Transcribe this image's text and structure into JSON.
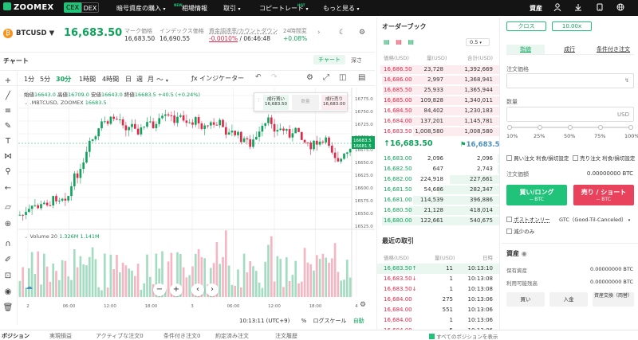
{
  "nav": {
    "logo": "ZOOMEX",
    "cex": "CEX",
    "dex": "DEX",
    "items": [
      "暗号資産の購入",
      "相場情報",
      "取引",
      "コピートレード",
      "もっと見る"
    ],
    "new1": "NEW",
    "new2": "HOT",
    "asset": "資産"
  },
  "ticker": {
    "symbol": "BTCUSD",
    "price": "16,683.50",
    "mark_label": "マーク価格",
    "mark": "16,683.50",
    "index_label": "インデックス価格",
    "index": "16,690.55",
    "funding_label": "資金調達率/カウントダウン",
    "funding": "-0.0010%",
    "countdown": "06:46:48",
    "change_label": "24時間変",
    "change": "+0.08%"
  },
  "chart": {
    "title": "チャート",
    "tab_chart": "チャート",
    "tab_depth": "深さ",
    "intervals": [
      "1分",
      "5分",
      "30分",
      "1時間",
      "4時間",
      "日",
      "週",
      "月"
    ],
    "active_interval": "30分",
    "indicator": "インジケーター",
    "ohlc": {
      "o_label": "始値",
      "o": "16643.0",
      "h_label": "高値",
      "h": "16709.0",
      "l_label": "安値",
      "l": "16643.0",
      "c_label": "終値",
      "c": "16683.5",
      "chg": "+40.5 (+0.24%)"
    },
    "series_label": ".MBTCUSD, ZOOMEX",
    "series_val": "16683.5",
    "sell_label": "成行買い",
    "sell_val": "16,683.50",
    "mid_label": "数量",
    "buy_label": "成行売り",
    "buy_val": "16,683.00",
    "yticks": [
      "16775.0",
      "16750.0",
      "16725.0",
      "16700.0",
      "16675.0",
      "16650.0",
      "16625.0",
      "16600.0",
      "16575.0",
      "16550.0",
      "16525.0"
    ],
    "last_tag": "16683.5",
    "last_tag2": "16681.5",
    "volume_label": "Volume 20",
    "vol1": "1.326M",
    "vol2": "1.141M",
    "xticks": [
      "2",
      "06:00",
      "12:00",
      "18:00",
      "3",
      "06:00",
      "12:00",
      "18:00",
      "4"
    ],
    "clock": "10:13:11 (UTC+9)",
    "pct": "%",
    "log": "ログスケール",
    "auto": "自動"
  },
  "orderbook": {
    "title": "オーダーブック",
    "depth": "0.5",
    "h_price": "価格(USD)",
    "h_qty": "量(USD)",
    "h_total": "合計(USD)",
    "asks": [
      [
        "16,686.50",
        "23,728",
        "1,392,669"
      ],
      [
        "16,686.00",
        "2,997",
        "1,368,941"
      ],
      [
        "16,685.50",
        "25,933",
        "1,365,944"
      ],
      [
        "16,685.00",
        "109,828",
        "1,340,011"
      ],
      [
        "16,684.50",
        "84,402",
        "1,230,183"
      ],
      [
        "16,684.00",
        "137,201",
        "1,145,781"
      ],
      [
        "16,683.50",
        "1,008,580",
        "1,008,580"
      ]
    ],
    "mid": "16,683.50",
    "mark": "16,683.5",
    "bids": [
      [
        "16,683.00",
        "2,096",
        "2,096"
      ],
      [
        "16,682.50",
        "647",
        "2,743"
      ],
      [
        "16,682.00",
        "224,918",
        "227,661"
      ],
      [
        "16,681.50",
        "54,686",
        "282,347"
      ],
      [
        "16,681.00",
        "114,539",
        "396,886"
      ],
      [
        "16,680.50",
        "21,128",
        "418,014"
      ],
      [
        "16,680.00",
        "122,661",
        "540,675"
      ]
    ],
    "trades_title": "最近の取引",
    "t_price": "価格(USD)",
    "t_qty": "量(USD)",
    "t_time": "日時",
    "trades": [
      [
        "16,683.50",
        "11",
        "10:13:10",
        "g"
      ],
      [
        "16,683.50",
        "1",
        "10:13:08",
        "r"
      ],
      [
        "16,683.50",
        "1",
        "10:13:08",
        "r"
      ],
      [
        "16,684.00",
        "275",
        "10:13:06",
        "r"
      ],
      [
        "16,684.00",
        "551",
        "10:13:06",
        "r"
      ],
      [
        "16,684.00",
        "1",
        "10:13:06",
        "r"
      ],
      [
        "16,684.00",
        "5",
        "10:13:06",
        "r"
      ]
    ]
  },
  "trade": {
    "cross": "クロス",
    "leverage": "10.00x",
    "tabs": [
      "指値",
      "成行",
      "条件付き注文"
    ],
    "price_label": "注文価格",
    "qty_label": "数量",
    "qty_unit": "USD",
    "pcts": [
      "10%",
      "25%",
      "50%",
      "75%",
      "100%"
    ],
    "buy_tp": "買い注文 利食/損切設定",
    "sell_tp": "売り注文 利食/損切設定",
    "amount_label": "注文価額",
    "amount": "0.00000000 BTC",
    "buy_btn": "買い/ロング",
    "buy_sub": "-- BTC",
    "sell_btn": "売り / ショート",
    "sell_sub": "-- BTC",
    "post_only": "ポストオンリー",
    "tif": "GTC（Good-Til-Canceled）",
    "reduce": "減少のみ",
    "assets_title": "資産",
    "held_label": "保有資産",
    "held": "0.00000000 BTC",
    "avail_label": "利用可能残高",
    "avail": "0.00000000 BTC",
    "btn_buy": "買い",
    "btn_deposit": "入金",
    "btn_convert": "資産交換（両替）"
  },
  "bottom": {
    "tabs": [
      "ポジション",
      "実現損益",
      "アクティブな注文",
      "条件付き注文",
      "約定済み注文",
      "注文履歴"
    ],
    "counts": [
      "",
      "",
      "0",
      "0",
      "",
      ""
    ],
    "show_all": "すべてのポジションを表示"
  },
  "colors": {
    "green": "#0fa35b",
    "red": "#e0294a",
    "accent": "#21c37b"
  }
}
